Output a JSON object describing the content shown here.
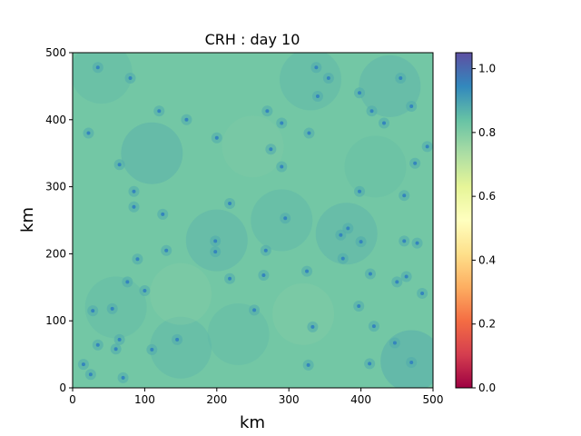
{
  "chart_data": {
    "type": "heatmap",
    "title": "CRH : day 10",
    "xlabel": "km",
    "ylabel": "km",
    "xlim": [
      0,
      500
    ],
    "ylim": [
      0,
      500
    ],
    "xticks": [
      "0",
      "100",
      "200",
      "300",
      "400",
      "500"
    ],
    "yticks": [
      "0",
      "100",
      "200",
      "300",
      "400",
      "500"
    ],
    "colorbar": {
      "colormap": "Spectral",
      "range": [
        0.0,
        1.05
      ],
      "ticks": [
        "0.0",
        "0.2",
        "0.4",
        "0.6",
        "0.8",
        "1.0"
      ]
    },
    "field": {
      "background_value": 0.82,
      "blobs": [
        {
          "x": 40,
          "y": 470,
          "v": 0.86
        },
        {
          "x": 110,
          "y": 350,
          "v": 0.89
        },
        {
          "x": 200,
          "y": 220,
          "v": 0.88
        },
        {
          "x": 380,
          "y": 230,
          "v": 0.88
        },
        {
          "x": 290,
          "y": 250,
          "v": 0.87
        },
        {
          "x": 470,
          "y": 40,
          "v": 0.9
        },
        {
          "x": 150,
          "y": 60,
          "v": 0.87
        },
        {
          "x": 330,
          "y": 460,
          "v": 0.87
        },
        {
          "x": 440,
          "y": 450,
          "v": 0.88
        },
        {
          "x": 60,
          "y": 120,
          "v": 0.86
        },
        {
          "x": 250,
          "y": 360,
          "v": 0.8
        },
        {
          "x": 150,
          "y": 140,
          "v": 0.79
        },
        {
          "x": 320,
          "y": 110,
          "v": 0.79
        },
        {
          "x": 230,
          "y": 80,
          "v": 0.86
        },
        {
          "x": 420,
          "y": 330,
          "v": 0.85
        }
      ],
      "peaks": [
        {
          "x": 35,
          "y": 478
        },
        {
          "x": 80,
          "y": 462
        },
        {
          "x": 338,
          "y": 478
        },
        {
          "x": 355,
          "y": 462
        },
        {
          "x": 455,
          "y": 462
        },
        {
          "x": 470,
          "y": 420
        },
        {
          "x": 120,
          "y": 413
        },
        {
          "x": 158,
          "y": 400
        },
        {
          "x": 270,
          "y": 413
        },
        {
          "x": 290,
          "y": 395
        },
        {
          "x": 415,
          "y": 413
        },
        {
          "x": 432,
          "y": 395
        },
        {
          "x": 340,
          "y": 435
        },
        {
          "x": 398,
          "y": 440
        },
        {
          "x": 22,
          "y": 380
        },
        {
          "x": 200,
          "y": 373
        },
        {
          "x": 328,
          "y": 380
        },
        {
          "x": 275,
          "y": 356
        },
        {
          "x": 65,
          "y": 333
        },
        {
          "x": 290,
          "y": 330
        },
        {
          "x": 475,
          "y": 335
        },
        {
          "x": 492,
          "y": 360
        },
        {
          "x": 85,
          "y": 293
        },
        {
          "x": 398,
          "y": 293
        },
        {
          "x": 460,
          "y": 287
        },
        {
          "x": 85,
          "y": 270
        },
        {
          "x": 125,
          "y": 259
        },
        {
          "x": 295,
          "y": 253
        },
        {
          "x": 218,
          "y": 275
        },
        {
          "x": 372,
          "y": 228
        },
        {
          "x": 382,
          "y": 238
        },
        {
          "x": 198,
          "y": 219
        },
        {
          "x": 198,
          "y": 203
        },
        {
          "x": 268,
          "y": 205
        },
        {
          "x": 130,
          "y": 205
        },
        {
          "x": 400,
          "y": 218
        },
        {
          "x": 460,
          "y": 219
        },
        {
          "x": 478,
          "y": 216
        },
        {
          "x": 90,
          "y": 192
        },
        {
          "x": 375,
          "y": 193
        },
        {
          "x": 325,
          "y": 174
        },
        {
          "x": 413,
          "y": 170
        },
        {
          "x": 265,
          "y": 168
        },
        {
          "x": 218,
          "y": 163
        },
        {
          "x": 76,
          "y": 158
        },
        {
          "x": 450,
          "y": 158
        },
        {
          "x": 463,
          "y": 166
        },
        {
          "x": 100,
          "y": 145
        },
        {
          "x": 485,
          "y": 141
        },
        {
          "x": 397,
          "y": 122
        },
        {
          "x": 55,
          "y": 118
        },
        {
          "x": 28,
          "y": 115
        },
        {
          "x": 252,
          "y": 116
        },
        {
          "x": 418,
          "y": 92
        },
        {
          "x": 333,
          "y": 91
        },
        {
          "x": 65,
          "y": 72
        },
        {
          "x": 145,
          "y": 72
        },
        {
          "x": 35,
          "y": 64
        },
        {
          "x": 110,
          "y": 57
        },
        {
          "x": 60,
          "y": 58
        },
        {
          "x": 447,
          "y": 67
        },
        {
          "x": 470,
          "y": 38
        },
        {
          "x": 412,
          "y": 36
        },
        {
          "x": 327,
          "y": 34
        },
        {
          "x": 25,
          "y": 20
        },
        {
          "x": 70,
          "y": 15
        },
        {
          "x": 15,
          "y": 35
        }
      ]
    }
  }
}
